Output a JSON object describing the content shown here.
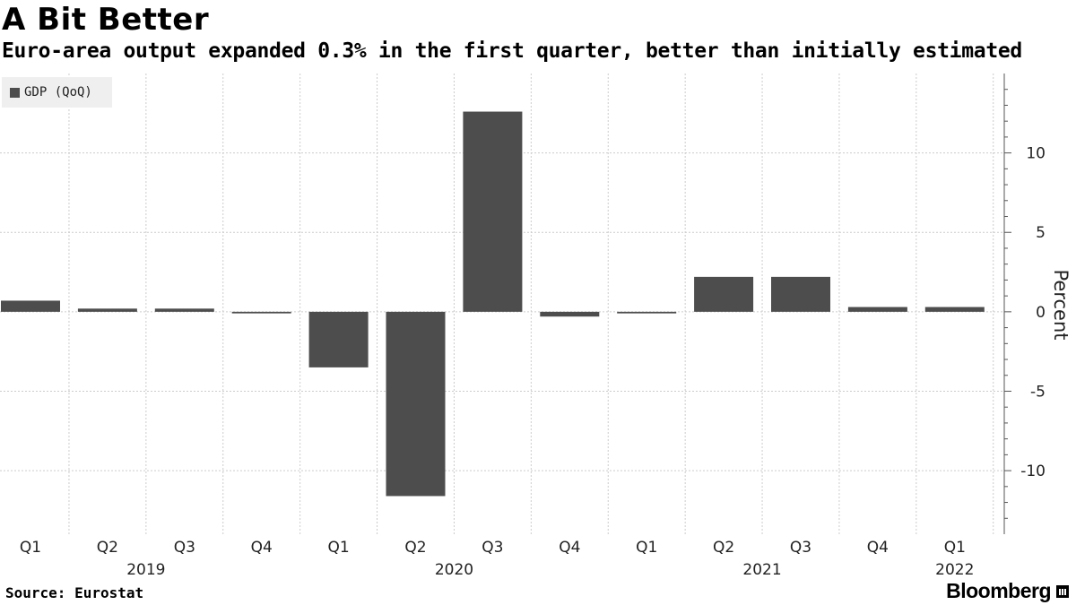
{
  "header": {
    "title": "A Bit Better",
    "subtitle": "Euro-area output expanded 0.3% in the first quarter, better than initially estimated"
  },
  "legend": {
    "label": "GDP (QoQ)",
    "color": "#4d4d4d"
  },
  "footer": {
    "source": "Source: Eurostat",
    "brand": "Bloomberg"
  },
  "chart_data": {
    "type": "bar",
    "title": "A Bit Better",
    "subtitle": "Euro-area output expanded 0.3% in the first quarter, better than initially estimated",
    "xlabel": "",
    "ylabel": "Percent",
    "categories": [
      "Q1",
      "Q2",
      "Q3",
      "Q4",
      "Q1",
      "Q2",
      "Q3",
      "Q4",
      "Q1",
      "Q2",
      "Q3",
      "Q4",
      "Q1"
    ],
    "year_labels": [
      {
        "label": "2019",
        "category_index": 1.5
      },
      {
        "label": "2020",
        "category_index": 5.5
      },
      {
        "label": "2021",
        "category_index": 9.5
      },
      {
        "label": "2022",
        "category_index": 12
      }
    ],
    "series": [
      {
        "name": "GDP (QoQ)",
        "color": "#4d4d4d",
        "values": [
          0.7,
          0.2,
          0.2,
          -0.1,
          -3.5,
          -11.6,
          12.6,
          -0.3,
          -0.1,
          2.2,
          2.2,
          0.3,
          0.3
        ]
      }
    ],
    "yticks": [
      10,
      5,
      0,
      -5,
      -10
    ],
    "ylim": [
      -14,
      15
    ],
    "grid": true,
    "legend_position": "top-left",
    "yaxis_side": "right"
  }
}
